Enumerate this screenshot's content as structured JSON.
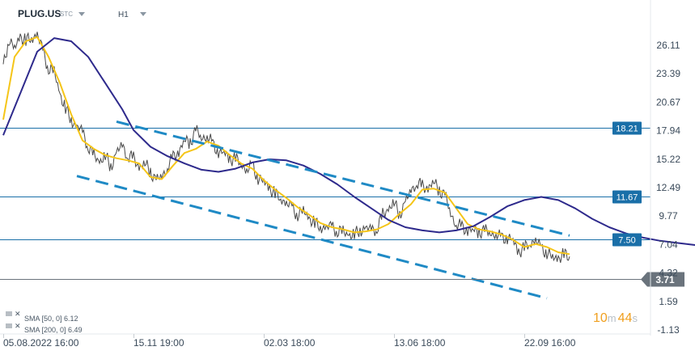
{
  "header": {
    "symbol": "PLUG.US",
    "symbol_suffix": "STC",
    "timeframe": "H1"
  },
  "timer": {
    "minutes": "10",
    "minutes_unit": "m",
    "seconds": "44",
    "seconds_unit": "s"
  },
  "chart_data": {
    "type": "line",
    "title": "",
    "instrument": "PLUG.US",
    "timeframe": "H1",
    "y_ticks": [
      "26.11",
      "23.39",
      "20.67",
      "17.94",
      "15.22",
      "12.49",
      "9.77",
      "7.04",
      "4.32",
      "1.59",
      "-1.13"
    ],
    "ylim": [
      -1.13,
      26.11
    ],
    "x_ticks": [
      {
        "label": "05.08.2022  16:00",
        "index": 0
      },
      {
        "label": "15.11  19:00",
        "index": 230
      },
      {
        "label": "02.03  18:00",
        "index": 460
      },
      {
        "label": "13.06  18:00",
        "index": 690
      },
      {
        "label": "22.09  16:00",
        "index": 920
      }
    ],
    "series": [
      {
        "name": "PLUG.US",
        "color": "#4a4a4a",
        "points": [
          [
            0,
            24.0
          ],
          [
            10,
            26.8
          ],
          [
            20,
            25.7
          ],
          [
            30,
            27.0
          ],
          [
            40,
            26.5
          ],
          [
            50,
            26.8
          ],
          [
            60,
            27.2
          ],
          [
            70,
            25.5
          ],
          [
            80,
            24.0
          ],
          [
            90,
            23.5
          ],
          [
            100,
            21.5
          ],
          [
            110,
            20.0
          ],
          [
            120,
            19.0
          ],
          [
            130,
            18.3
          ],
          [
            140,
            17.8
          ],
          [
            150,
            16.5
          ],
          [
            160,
            15.5
          ],
          [
            170,
            15.0
          ],
          [
            180,
            15.5
          ],
          [
            190,
            14.5
          ],
          [
            200,
            15.8
          ],
          [
            210,
            16.5
          ],
          [
            220,
            15.6
          ],
          [
            230,
            15.2
          ],
          [
            240,
            14.5
          ],
          [
            250,
            14.8
          ],
          [
            260,
            14.0
          ],
          [
            270,
            13.2
          ],
          [
            280,
            13.5
          ],
          [
            290,
            14.5
          ],
          [
            300,
            15.3
          ],
          [
            310,
            16.0
          ],
          [
            320,
            17.0
          ],
          [
            330,
            16.8
          ],
          [
            340,
            18.0
          ],
          [
            350,
            17.2
          ],
          [
            360,
            17.5
          ],
          [
            370,
            16.5
          ],
          [
            380,
            16.0
          ],
          [
            390,
            15.8
          ],
          [
            400,
            15.3
          ],
          [
            410,
            15.2
          ],
          [
            420,
            14.8
          ],
          [
            430,
            14.2
          ],
          [
            440,
            14.5
          ],
          [
            450,
            13.5
          ],
          [
            460,
            13.0
          ],
          [
            470,
            12.5
          ],
          [
            480,
            11.8
          ],
          [
            490,
            11.5
          ],
          [
            500,
            11.0
          ],
          [
            510,
            10.5
          ],
          [
            520,
            10.0
          ],
          [
            530,
            10.2
          ],
          [
            540,
            9.6
          ],
          [
            550,
            9.0
          ],
          [
            560,
            8.8
          ],
          [
            570,
            8.6
          ],
          [
            580,
            8.8
          ],
          [
            590,
            8.4
          ],
          [
            600,
            8.2
          ],
          [
            610,
            8.0
          ],
          [
            620,
            7.9
          ],
          [
            630,
            8.5
          ],
          [
            640,
            8.5
          ],
          [
            650,
            8.5
          ],
          [
            660,
            8.6
          ],
          [
            670,
            9.8
          ],
          [
            680,
            10.5
          ],
          [
            690,
            11.0
          ],
          [
            700,
            10.0
          ],
          [
            710,
            11.0
          ],
          [
            720,
            12.2
          ],
          [
            730,
            13.0
          ],
          [
            740,
            12.5
          ],
          [
            750,
            12.5
          ],
          [
            760,
            13.0
          ],
          [
            770,
            12.3
          ],
          [
            780,
            11.7
          ],
          [
            790,
            10.0
          ],
          [
            800,
            9.0
          ],
          [
            810,
            8.6
          ],
          [
            820,
            8.5
          ],
          [
            830,
            8.4
          ],
          [
            840,
            8.3
          ],
          [
            850,
            8.3
          ],
          [
            860,
            8.2
          ],
          [
            870,
            8.0
          ],
          [
            880,
            7.6
          ],
          [
            890,
            7.8
          ],
          [
            900,
            7.4
          ],
          [
            910,
            6.4
          ],
          [
            920,
            6.6
          ],
          [
            930,
            7.2
          ],
          [
            940,
            7.5
          ],
          [
            950,
            6.6
          ],
          [
            960,
            6.4
          ],
          [
            970,
            5.7
          ],
          [
            980,
            5.8
          ],
          [
            990,
            6.0
          ],
          [
            1000,
            5.9
          ]
        ]
      },
      {
        "name": "SMA [50, 0]",
        "color": "#f5c518",
        "last_value": 6.12,
        "points": [
          [
            0,
            19.0
          ],
          [
            20,
            25.0
          ],
          [
            40,
            26.5
          ],
          [
            60,
            26.9
          ],
          [
            80,
            25.0
          ],
          [
            100,
            22.5
          ],
          [
            120,
            19.5
          ],
          [
            140,
            17.0
          ],
          [
            160,
            16.2
          ],
          [
            180,
            15.6
          ],
          [
            200,
            15.3
          ],
          [
            220,
            15.1
          ],
          [
            240,
            14.8
          ],
          [
            260,
            13.5
          ],
          [
            280,
            13.3
          ],
          [
            300,
            14.6
          ],
          [
            320,
            15.8
          ],
          [
            340,
            16.2
          ],
          [
            360,
            16.9
          ],
          [
            380,
            16.5
          ],
          [
            400,
            15.6
          ],
          [
            420,
            14.8
          ],
          [
            440,
            14.3
          ],
          [
            460,
            13.2
          ],
          [
            480,
            12.3
          ],
          [
            500,
            11.5
          ],
          [
            520,
            10.6
          ],
          [
            540,
            9.9
          ],
          [
            560,
            9.1
          ],
          [
            580,
            8.7
          ],
          [
            600,
            8.5
          ],
          [
            620,
            8.2
          ],
          [
            640,
            8.3
          ],
          [
            660,
            8.5
          ],
          [
            680,
            9.0
          ],
          [
            700,
            10.0
          ],
          [
            720,
            10.9
          ],
          [
            740,
            12.3
          ],
          [
            760,
            12.4
          ],
          [
            780,
            12.0
          ],
          [
            800,
            10.5
          ],
          [
            820,
            9.0
          ],
          [
            840,
            8.5
          ],
          [
            860,
            8.3
          ],
          [
            880,
            8.0
          ],
          [
            900,
            7.5
          ],
          [
            920,
            6.8
          ],
          [
            940,
            7.1
          ],
          [
            960,
            6.8
          ],
          [
            980,
            6.3
          ],
          [
            1000,
            6.12
          ]
        ]
      },
      {
        "name": "SMA [200, 0]",
        "color": "#2e2a8c",
        "last_value": 6.49,
        "points": [
          [
            0,
            17.5
          ],
          [
            30,
            21.5
          ],
          [
            60,
            25.5
          ],
          [
            90,
            26.8
          ],
          [
            120,
            26.5
          ],
          [
            150,
            25.0
          ],
          [
            180,
            22.5
          ],
          [
            210,
            20.0
          ],
          [
            230,
            18.0
          ],
          [
            260,
            16.4
          ],
          [
            290,
            15.5
          ],
          [
            320,
            14.8
          ],
          [
            350,
            14.2
          ],
          [
            380,
            14.0
          ],
          [
            410,
            14.3
          ],
          [
            440,
            14.9
          ],
          [
            470,
            15.2
          ],
          [
            500,
            15.1
          ],
          [
            530,
            14.6
          ],
          [
            560,
            13.8
          ],
          [
            590,
            12.8
          ],
          [
            620,
            11.6
          ],
          [
            650,
            10.5
          ],
          [
            680,
            9.4
          ],
          [
            710,
            8.7
          ],
          [
            740,
            8.4
          ],
          [
            770,
            8.2
          ],
          [
            800,
            8.4
          ],
          [
            830,
            8.8
          ],
          [
            860,
            9.7
          ],
          [
            890,
            10.7
          ],
          [
            920,
            11.3
          ],
          [
            950,
            11.6
          ],
          [
            980,
            11.3
          ],
          [
            1010,
            10.5
          ],
          [
            1040,
            9.5
          ],
          [
            1070,
            8.7
          ],
          [
            1100,
            8.1
          ],
          [
            1130,
            7.7
          ],
          [
            1160,
            7.4
          ],
          [
            1190,
            7.2
          ],
          [
            1220,
            7.0
          ],
          [
            1250,
            6.8
          ],
          [
            1280,
            6.6
          ],
          [
            1300,
            6.49
          ]
        ]
      }
    ],
    "levels": [
      {
        "value": 18.21,
        "label": "18.21",
        "color": "#1a6fa8"
      },
      {
        "value": 11.67,
        "label": "11.67",
        "color": "#1a6fa8"
      },
      {
        "value": 7.5,
        "label": "7.50",
        "color": "#1a6fa8"
      }
    ],
    "channel": {
      "color": "#1f8ac5",
      "upper": [
        [
          200,
          18.8
        ],
        [
          1000,
          7.9
        ]
      ],
      "lower": [
        [
          130,
          13.6
        ],
        [
          960,
          1.9
        ]
      ]
    },
    "current_price": {
      "value": 3.71,
      "label": "3.71",
      "color": "#6a737c"
    },
    "legend": [
      {
        "label": "SMA [50, 0] 6.12"
      },
      {
        "label": "SMA [200, 0] 6.49"
      }
    ],
    "grid": false
  }
}
